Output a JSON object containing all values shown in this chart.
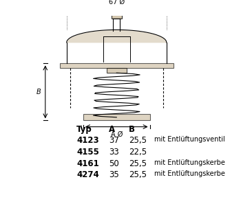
{
  "bg_color": "#ffffff",
  "line_color": "#000000",
  "drawing_color": "#c8b89a",
  "table_header": [
    "Typ",
    "A",
    "B"
  ],
  "table_rows": [
    {
      "typ": "4123",
      "A": "37",
      "B": "25,5",
      "note": "mit Entlüftungsventil",
      "typ_bold": true
    },
    {
      "typ": "4155",
      "A": "33",
      "B": "22,5",
      "note": "",
      "typ_bold": true
    },
    {
      "typ": "4161",
      "A": "50",
      "B": "25,5",
      "note": "mit Entlüftungskerbe",
      "typ_bold": true
    },
    {
      "typ": "4274",
      "A": "35",
      "B": "25,5",
      "note": "mit Entlüftungskerbe",
      "typ_bold": true
    }
  ],
  "dim_67": "67 Ø",
  "dim_A": "A Ø",
  "dim_B": "B",
  "header_fontsize": 8,
  "body_fontsize": 8,
  "note_fontsize": 7
}
